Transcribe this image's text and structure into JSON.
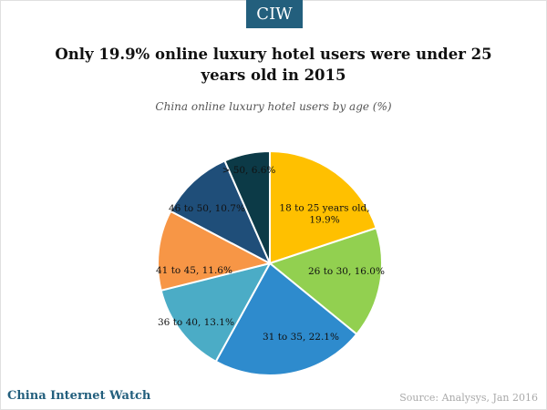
{
  "header": {
    "brand": "CIW",
    "title": "Only 19.9% online luxury hotel users were under 25 years old in 2015",
    "subtitle": "China online luxury hotel users by age (%)"
  },
  "footer": {
    "brand": "China Internet Watch",
    "source": "Source: Analysys, Jan 2016"
  },
  "chart_data": {
    "type": "pie",
    "title": "China online luxury hotel users by age (%)",
    "categories": [
      "18 to 25 years old",
      "26 to 30",
      "31 to 35",
      "36 to 40",
      "41 to 45",
      "46 to 50",
      "> 50"
    ],
    "values": [
      19.9,
      16.0,
      22.1,
      13.1,
      11.6,
      10.7,
      6.6
    ],
    "labels": [
      [
        "18 to 25 years old,",
        "19.9%"
      ],
      [
        "26 to 30, 16.0%"
      ],
      [
        "31 to 35, 22.1%"
      ],
      [
        "36 to 40, 13.1%"
      ],
      [
        "41 to 45, 11.6%"
      ],
      [
        "46 to 50, 10.7%"
      ],
      [
        "> 50, 6.6%"
      ]
    ],
    "colors": [
      "#ffc000",
      "#92d050",
      "#2e8bcd",
      "#4bacc6",
      "#f79646",
      "#1f4e79",
      "#0c3a47"
    ],
    "start": "12 o'clock",
    "direction": "clockwise",
    "legend": "none"
  }
}
